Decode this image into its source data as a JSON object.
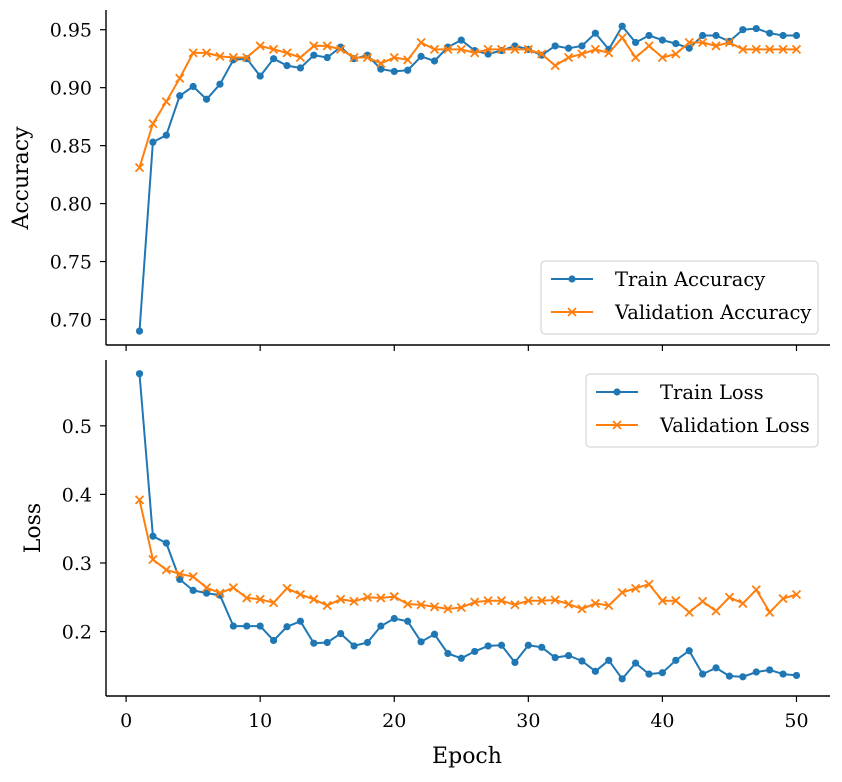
{
  "chart_data": [
    {
      "type": "line",
      "ylabel": "Accuracy",
      "xlim": [
        -1.5,
        52.5
      ],
      "ylim": [
        0.678,
        0.967
      ],
      "xticks": [
        0,
        10,
        20,
        30,
        40,
        50
      ],
      "yticks": [
        0.7,
        0.75,
        0.8,
        0.85,
        0.9,
        0.95
      ],
      "ytick_labels": [
        "0.70",
        "0.75",
        "0.80",
        "0.85",
        "0.90",
        "0.95"
      ],
      "legend_position": "lower-right",
      "x": [
        1,
        2,
        3,
        4,
        5,
        6,
        7,
        8,
        9,
        10,
        11,
        12,
        13,
        14,
        15,
        16,
        17,
        18,
        19,
        20,
        21,
        22,
        23,
        24,
        25,
        26,
        27,
        28,
        29,
        30,
        31,
        32,
        33,
        34,
        35,
        36,
        37,
        38,
        39,
        40,
        41,
        42,
        43,
        44,
        45,
        46,
        47,
        48,
        49,
        50
      ],
      "series": [
        {
          "name": "Train Accuracy",
          "color": "#1f77b4",
          "marker": "circle",
          "values": [
            0.69,
            0.853,
            0.859,
            0.893,
            0.901,
            0.89,
            0.903,
            0.924,
            0.925,
            0.91,
            0.925,
            0.919,
            0.917,
            0.928,
            0.926,
            0.935,
            0.925,
            0.928,
            0.916,
            0.914,
            0.915,
            0.927,
            0.923,
            0.935,
            0.941,
            0.932,
            0.929,
            0.932,
            0.936,
            0.933,
            0.928,
            0.936,
            0.934,
            0.936,
            0.947,
            0.933,
            0.953,
            0.939,
            0.945,
            0.941,
            0.938,
            0.934,
            0.945,
            0.945,
            0.94,
            0.95,
            0.951,
            0.947,
            0.945,
            0.945
          ]
        },
        {
          "name": "Validation Accuracy",
          "color": "#ff7f0e",
          "marker": "x",
          "values": [
            0.831,
            0.869,
            0.888,
            0.908,
            0.93,
            0.93,
            0.927,
            0.926,
            0.926,
            0.936,
            0.933,
            0.93,
            0.926,
            0.936,
            0.936,
            0.933,
            0.926,
            0.926,
            0.921,
            0.926,
            0.924,
            0.939,
            0.933,
            0.933,
            0.933,
            0.93,
            0.933,
            0.933,
            0.933,
            0.933,
            0.929,
            0.919,
            0.926,
            0.929,
            0.933,
            0.93,
            0.943,
            0.926,
            0.936,
            0.926,
            0.929,
            0.939,
            0.939,
            0.936,
            0.939,
            0.933,
            0.933,
            0.933,
            0.933,
            0.933
          ]
        }
      ]
    },
    {
      "type": "line",
      "xlabel": "Epoch",
      "ylabel": "Loss",
      "xlim": [
        -1.5,
        52.5
      ],
      "ylim": [
        0.106,
        0.596
      ],
      "xticks": [
        0,
        10,
        20,
        30,
        40,
        50
      ],
      "xtick_labels": [
        "0",
        "10",
        "20",
        "30",
        "40",
        "50"
      ],
      "yticks": [
        0.2,
        0.3,
        0.4,
        0.5
      ],
      "ytick_labels": [
        "0.2",
        "0.3",
        "0.4",
        "0.5"
      ],
      "legend_position": "upper-right",
      "x": [
        1,
        2,
        3,
        4,
        5,
        6,
        7,
        8,
        9,
        10,
        11,
        12,
        13,
        14,
        15,
        16,
        17,
        18,
        19,
        20,
        21,
        22,
        23,
        24,
        25,
        26,
        27,
        28,
        29,
        30,
        31,
        32,
        33,
        34,
        35,
        36,
        37,
        38,
        39,
        40,
        41,
        42,
        43,
        44,
        45,
        46,
        47,
        48,
        49,
        50
      ],
      "series": [
        {
          "name": "Train Loss",
          "color": "#1f77b4",
          "marker": "circle",
          "values": [
            0.576,
            0.339,
            0.329,
            0.276,
            0.26,
            0.256,
            0.253,
            0.208,
            0.208,
            0.208,
            0.187,
            0.207,
            0.215,
            0.183,
            0.184,
            0.197,
            0.179,
            0.184,
            0.208,
            0.219,
            0.215,
            0.185,
            0.196,
            0.168,
            0.161,
            0.171,
            0.179,
            0.18,
            0.155,
            0.18,
            0.177,
            0.162,
            0.165,
            0.157,
            0.142,
            0.158,
            0.131,
            0.154,
            0.138,
            0.14,
            0.158,
            0.172,
            0.138,
            0.147,
            0.135,
            0.134,
            0.141,
            0.144,
            0.138,
            0.136
          ]
        },
        {
          "name": "Validation Loss",
          "color": "#ff7f0e",
          "marker": "x",
          "values": [
            0.392,
            0.305,
            0.29,
            0.284,
            0.28,
            0.264,
            0.256,
            0.264,
            0.249,
            0.247,
            0.242,
            0.263,
            0.254,
            0.247,
            0.238,
            0.247,
            0.244,
            0.25,
            0.249,
            0.251,
            0.24,
            0.239,
            0.236,
            0.233,
            0.235,
            0.243,
            0.245,
            0.245,
            0.239,
            0.245,
            0.245,
            0.246,
            0.24,
            0.233,
            0.241,
            0.238,
            0.257,
            0.263,
            0.269,
            0.245,
            0.245,
            0.228,
            0.244,
            0.23,
            0.25,
            0.241,
            0.261,
            0.228,
            0.248,
            0.254
          ]
        }
      ]
    }
  ]
}
